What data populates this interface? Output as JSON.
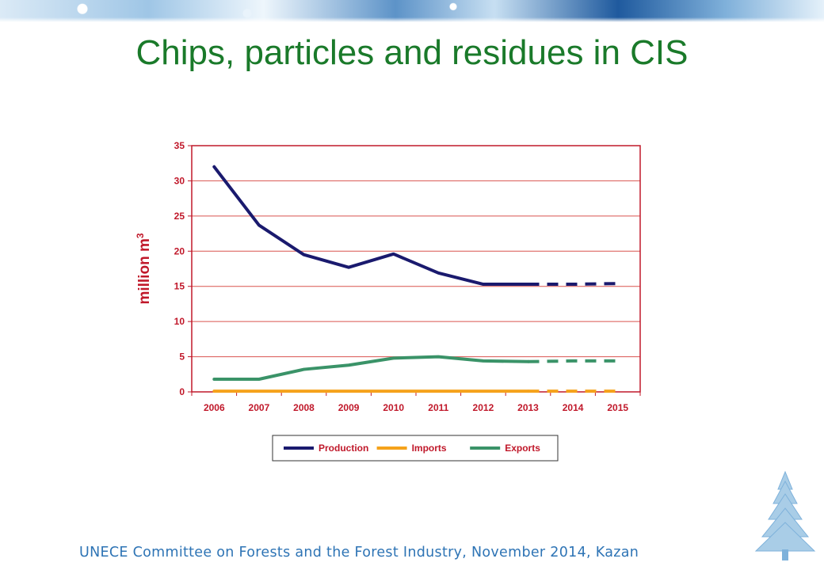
{
  "page": {
    "title": "Chips, particles and residues in CIS",
    "footer": "UNECE Committee on Forests and the Forest Industry, November 2014, Kazan"
  },
  "chart_data": {
    "type": "line",
    "title": "",
    "xlabel": "",
    "ylabel": "million m",
    "ylabel_superscript": "3",
    "categories": [
      "2006",
      "2007",
      "2008",
      "2009",
      "2010",
      "2011",
      "2012",
      "2013",
      "2014",
      "2015"
    ],
    "ylim": [
      0,
      35
    ],
    "yticks": [
      0,
      5,
      10,
      15,
      20,
      25,
      30,
      35
    ],
    "grid": true,
    "legend_position": "bottom",
    "forecast_from_index": 7,
    "series": [
      {
        "name": "Production",
        "color": "#1a1a6e",
        "values": [
          32.0,
          23.7,
          19.5,
          17.7,
          19.6,
          16.9,
          15.3,
          15.3,
          15.3,
          15.4
        ]
      },
      {
        "name": "Imports",
        "color": "#f5a21b",
        "values": [
          0.1,
          0.1,
          0.1,
          0.1,
          0.1,
          0.1,
          0.1,
          0.1,
          0.1,
          0.1
        ]
      },
      {
        "name": "Exports",
        "color": "#3a9368",
        "values": [
          1.8,
          1.8,
          3.2,
          3.8,
          4.8,
          5.0,
          4.4,
          4.3,
          4.4,
          4.4
        ]
      }
    ],
    "colors": {
      "axis": "#c0182a",
      "grid": "#d9534f",
      "text": "#c0182a"
    }
  }
}
